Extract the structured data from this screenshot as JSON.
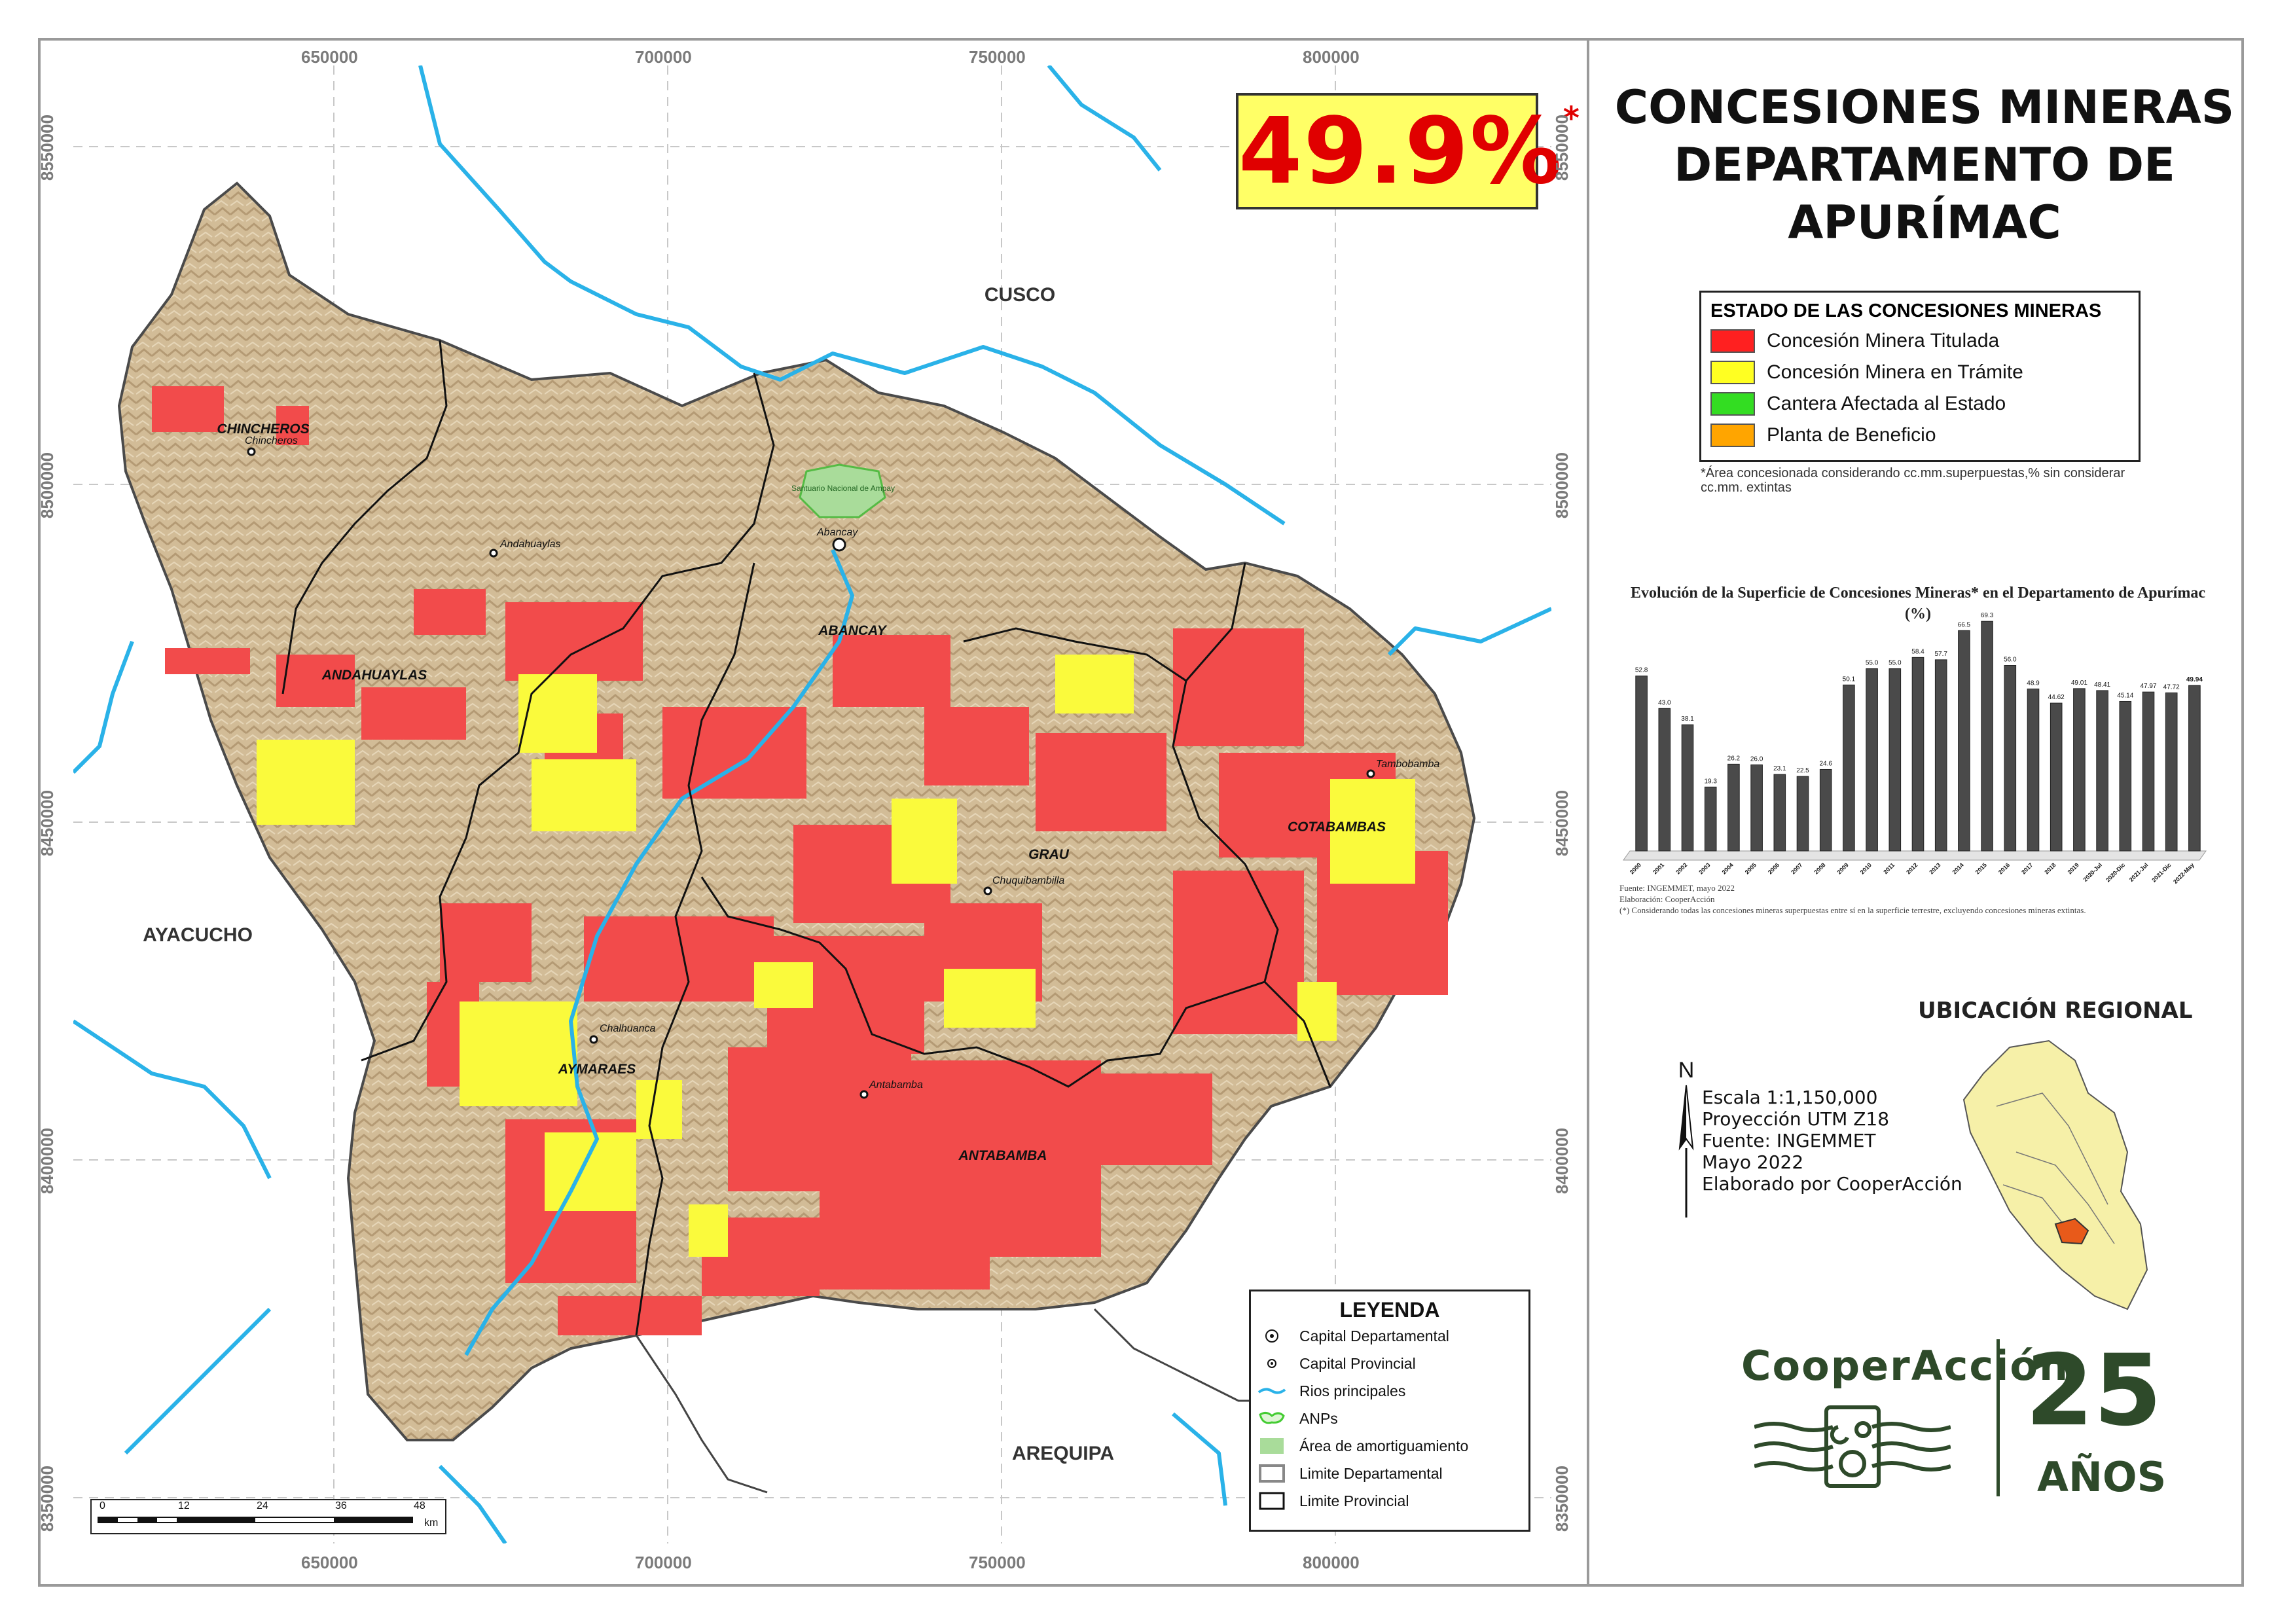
{
  "map_title": [
    "CONCESIONES MINERAS",
    "DEPARTAMENTO DE",
    "APURÍMAC"
  ],
  "percentage": {
    "value": "49.9%",
    "mark": "*"
  },
  "coords": {
    "x_labels": [
      "650000",
      "700000",
      "750000",
      "800000"
    ],
    "y_labels": [
      "8550000",
      "8500000",
      "8450000",
      "8400000",
      "8350000"
    ]
  },
  "regions": {
    "neighbors": [
      "CUSCO",
      "AYACUCHO",
      "AREQUIPA"
    ],
    "provinces": [
      "CHINCHEROS",
      "ANDAHUAYLAS",
      "ABANCAY",
      "GRAU",
      "COTABAMBAS",
      "AYMARAES",
      "ANTABAMBA"
    ],
    "towns": [
      "Chincheros",
      "Andahuaylas",
      "Abancay",
      "Chuquibambilla",
      "Tambobamba",
      "Chalhuanca",
      "Antabamba"
    ],
    "anp": "Santuario Nacional de Ampay"
  },
  "concession_legend": {
    "title": "ESTADO DE LAS CONCESIONES MINERAS",
    "items": [
      {
        "label": "Concesión Minera Titulada",
        "color": "#ff2020"
      },
      {
        "label": "Concesión Minera en Trámite",
        "color": "#ffff22"
      },
      {
        "label": "Cantera Afectada al Estado",
        "color": "#33dd22"
      },
      {
        "label": "Planta de Beneficio",
        "color": "#ffa500"
      }
    ],
    "note": "*Área concesionada considerando cc.mm.superpuestas,% sin considerar cc.mm. extintas"
  },
  "chart_title": "Evolución de la Superficie de Concesiones Mineras* en el Departamento de Apurímac (%)",
  "chart_data": {
    "type": "bar",
    "categories": [
      "2000",
      "2001",
      "2002",
      "2003",
      "2004",
      "2005",
      "2006",
      "2007",
      "2008",
      "2009",
      "2010",
      "2011",
      "2012",
      "2013",
      "2014",
      "2015",
      "2016",
      "2017",
      "2018",
      "2019",
      "2020-Jul",
      "2020-Dic",
      "2021-Jul",
      "2021-Dic",
      "2022-May"
    ],
    "values": [
      52.8,
      43.0,
      38.1,
      19.3,
      26.2,
      26.0,
      23.1,
      22.5,
      24.6,
      50.1,
      55.0,
      55.0,
      58.4,
      57.7,
      66.5,
      69.3,
      56.0,
      48.9,
      44.62,
      49.01,
      48.41,
      45.14,
      47.97,
      47.72,
      49.94
    ],
    "value_labels": [
      "52.8",
      "43.0",
      "38.1",
      "19.3",
      "26.2",
      "26.0",
      "23.1",
      "22.5",
      "24.6",
      "50.1",
      "55.0",
      "55.0",
      "58.4",
      "57.7",
      "66.5",
      "69.3",
      "56.0",
      "48.9",
      "44.62",
      "49.01",
      "48.41",
      "45.14",
      "47.97",
      "47.72",
      "49.94"
    ],
    "ylim": [
      0,
      80
    ],
    "grid": false,
    "legend": "none"
  },
  "chart_notes": [
    "Fuente: INGEMMET, mayo 2022",
    "Elaboración: CooperAcción",
    "(*) Considerando todas las concesiones mineras superpuestas entre sí en la superficie terrestre, excluyendo concesiones mineras extintas."
  ],
  "ubicacion_title": "UBICACIÓN REGIONAL",
  "north_label": "N",
  "map_info": [
    "Escala 1:1,150,000",
    "Proyección UTM Z18",
    "Fuente: INGEMMET",
    "Mayo 2022",
    "Elaborado por CooperAcción"
  ],
  "map_legend": {
    "title": "LEYENDA",
    "items": [
      {
        "label": "Capital Departamental",
        "icon": "dept-capital-icon"
      },
      {
        "label": "Capital Provincial",
        "icon": "prov-capital-icon"
      },
      {
        "label": "Rios principales",
        "icon": "river-icon"
      },
      {
        "label": "ANPs",
        "icon": "anp-icon"
      },
      {
        "label": "Área de amortiguamiento",
        "icon": "buffer-area-icon"
      },
      {
        "label": "Limite Departamental",
        "icon": "dept-boundary-icon"
      },
      {
        "label": "Limite Provincial",
        "icon": "prov-boundary-icon"
      }
    ]
  },
  "scale_bar": {
    "ticks": [
      "0",
      "12",
      "24",
      "36",
      "48"
    ],
    "unit": "km"
  },
  "brand": {
    "name": "CooperAcción",
    "anniversary_number": "25",
    "anniversary_word": "AÑOS",
    "color": "#2e4a2a"
  }
}
